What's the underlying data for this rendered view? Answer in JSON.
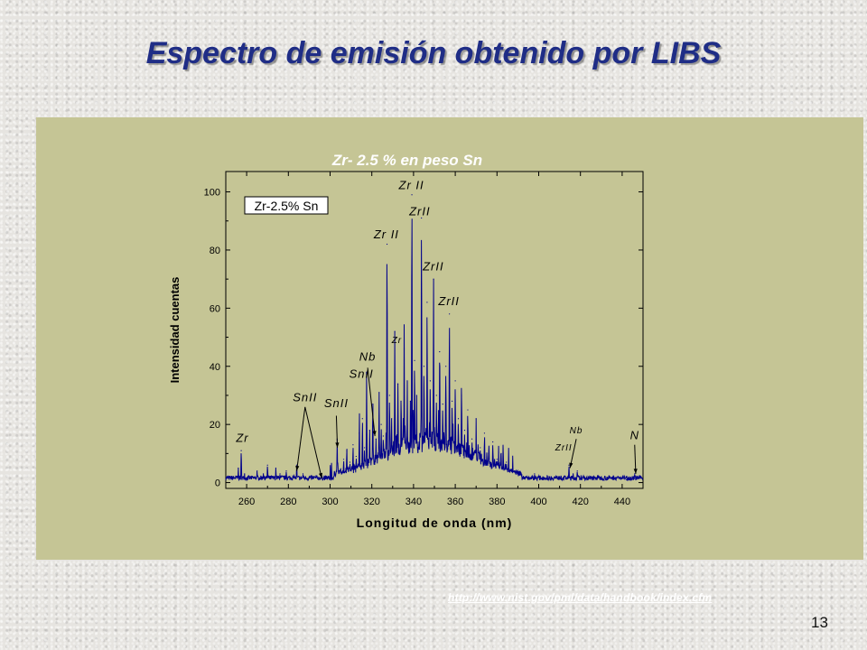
{
  "slide": {
    "title": "Espectro de emisión obtenido por LIBS",
    "source_url": "http://www.nist.gov/pml/data/handbook/index.cfm",
    "page_number": "13"
  },
  "colors": {
    "title": "#1f2d86",
    "panel": "#c5c595",
    "spectrum": "#00008b"
  },
  "chart_data": {
    "type": "line",
    "title": "Zr- 2.5 % en  peso Sn",
    "legend": "Zr-2.5% Sn",
    "legend_placement": "top-left",
    "xlabel": "Longitud de onda (nm)",
    "ylabel": "Intensidad cuentas",
    "xlim": [
      250,
      450
    ],
    "ylim": [
      -2,
      107
    ],
    "xticks": [
      260,
      280,
      300,
      320,
      340,
      360,
      380,
      400,
      420,
      440
    ],
    "yticks": [
      0,
      20,
      40,
      60,
      80,
      100
    ],
    "grid": false,
    "series": [
      {
        "peaks": [
          [
            256,
            5
          ],
          [
            257.4,
            11
          ],
          [
            259,
            3
          ],
          [
            262,
            2
          ],
          [
            265,
            4
          ],
          [
            268,
            3
          ],
          [
            270,
            6
          ],
          [
            272,
            2
          ],
          [
            274,
            5
          ],
          [
            276,
            3
          ],
          [
            279,
            4
          ],
          [
            283,
            2
          ],
          [
            284.0,
            6
          ],
          [
            287,
            3
          ],
          [
            290,
            2
          ],
          [
            302,
            3
          ],
          [
            303.4,
            15
          ],
          [
            305,
            4
          ],
          [
            306.5,
            8
          ],
          [
            308,
            11
          ],
          [
            309.5,
            7
          ],
          [
            311,
            13
          ],
          [
            312.5,
            9
          ],
          [
            314,
            17
          ],
          [
            315.5,
            22
          ],
          [
            316.5,
            12
          ],
          [
            317.5,
            38
          ],
          [
            319,
            18
          ],
          [
            320.5,
            27
          ],
          [
            322,
            15
          ],
          [
            323.5,
            31
          ],
          [
            324.5,
            20
          ],
          [
            325.5,
            16
          ],
          [
            327.3,
            82
          ],
          [
            328.5,
            30
          ],
          [
            329.5,
            22
          ],
          [
            331,
            52
          ],
          [
            332.5,
            34
          ],
          [
            334,
            28
          ],
          [
            335.5,
            46
          ],
          [
            337,
            35
          ],
          [
            338.5,
            28
          ],
          [
            339.2,
            99
          ],
          [
            340.5,
            42
          ],
          [
            341.5,
            30
          ],
          [
            343.8,
            91
          ],
          [
            345,
            40
          ],
          [
            346.5,
            62
          ],
          [
            348,
            35
          ],
          [
            349.6,
            70
          ],
          [
            351,
            30
          ],
          [
            352.5,
            45
          ],
          [
            354,
            27
          ],
          [
            355.5,
            40
          ],
          [
            357.2,
            58
          ],
          [
            358.5,
            28
          ],
          [
            360,
            35
          ],
          [
            361.5,
            22
          ],
          [
            363,
            30
          ],
          [
            364.5,
            18
          ],
          [
            366,
            25
          ],
          [
            368,
            15
          ],
          [
            370,
            22
          ],
          [
            372,
            12
          ],
          [
            374,
            17
          ],
          [
            376,
            10
          ],
          [
            378,
            14
          ],
          [
            380,
            8
          ],
          [
            382,
            10
          ],
          [
            384.5,
            7
          ],
          [
            387,
            4
          ],
          [
            390,
            3
          ],
          [
            394,
            2
          ],
          [
            398,
            3
          ],
          [
            402,
            2
          ],
          [
            406,
            2
          ],
          [
            410,
            2
          ],
          [
            414.5,
            6
          ],
          [
            416.5,
            3
          ],
          [
            418.5,
            4
          ],
          [
            422,
            2
          ],
          [
            426,
            2
          ],
          [
            430,
            2
          ],
          [
            436,
            2
          ],
          [
            442,
            1
          ],
          [
            446,
            3
          ],
          [
            448,
            2
          ]
        ]
      }
    ],
    "annotations": [
      {
        "text": "Zr II",
        "x": 339,
        "y": 101
      },
      {
        "text": "ZrII",
        "x": 343,
        "y": 92
      },
      {
        "text": "Zr II",
        "x": 327,
        "y": 84
      },
      {
        "text": "ZrII",
        "x": 349.5,
        "y": 73
      },
      {
        "text": "ZrII",
        "x": 357,
        "y": 61
      },
      {
        "text": "Zr",
        "x": 332,
        "y": 48
      },
      {
        "text": "Nb",
        "x": 318,
        "y": 42
      },
      {
        "text": "SnII",
        "x": 315,
        "y": 36
      },
      {
        "text": "SnII",
        "x": 288,
        "y": 28
      },
      {
        "text": "SnII",
        "x": 303,
        "y": 26
      },
      {
        "text": "Zr",
        "x": 258,
        "y": 14
      },
      {
        "text": "N",
        "x": 446,
        "y": 15
      },
      {
        "text": "Nb",
        "x": 418,
        "y": 17
      },
      {
        "text": "ZrII",
        "x": 412,
        "y": 11
      }
    ]
  }
}
